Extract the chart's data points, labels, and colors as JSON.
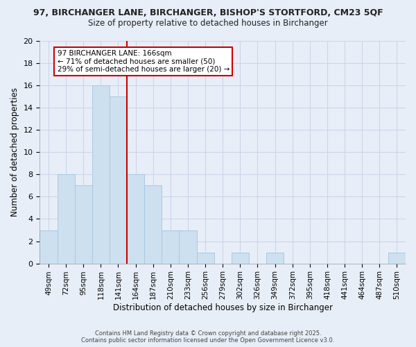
{
  "title_line1": "97, BIRCHANGER LANE, BIRCHANGER, BISHOP'S STORTFORD, CM23 5QF",
  "title_line2": "Size of property relative to detached houses in Birchanger",
  "xlabel": "Distribution of detached houses by size in Birchanger",
  "ylabel": "Number of detached properties",
  "categories": [
    "49sqm",
    "72sqm",
    "95sqm",
    "118sqm",
    "141sqm",
    "164sqm",
    "187sqm",
    "210sqm",
    "233sqm",
    "256sqm",
    "279sqm",
    "302sqm",
    "326sqm",
    "349sqm",
    "372sqm",
    "395sqm",
    "418sqm",
    "441sqm",
    "464sqm",
    "487sqm",
    "510sqm"
  ],
  "values": [
    3,
    8,
    7,
    16,
    15,
    8,
    7,
    3,
    3,
    1,
    0,
    1,
    0,
    1,
    0,
    0,
    0,
    0,
    0,
    0,
    1
  ],
  "bar_color": "#cce0f0",
  "bar_edge_color": "#aac8e0",
  "vline_x_index": 5,
  "vline_color": "#cc0000",
  "annotation_text": "97 BIRCHANGER LANE: 166sqm\n← 71% of detached houses are smaller (50)\n29% of semi-detached houses are larger (20) →",
  "annotation_box_color": "#ffffff",
  "annotation_box_edge": "#cc0000",
  "ylim": [
    0,
    20
  ],
  "yticks": [
    0,
    2,
    4,
    6,
    8,
    10,
    12,
    14,
    16,
    18,
    20
  ],
  "grid_color": "#ccd5e8",
  "background_color": "#e8eef8",
  "footer_line1": "Contains HM Land Registry data © Crown copyright and database right 2025.",
  "footer_line2": "Contains public sector information licensed under the Open Government Licence v3.0."
}
